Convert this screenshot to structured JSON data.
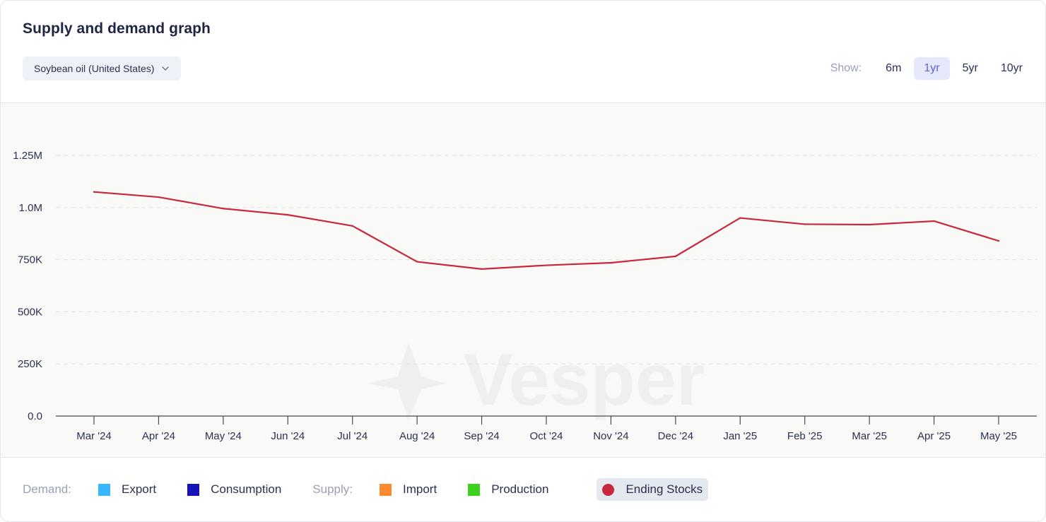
{
  "header": {
    "title": "Supply and demand graph",
    "commodity_select": "Soybean oil (United States)"
  },
  "range": {
    "label": "Show:",
    "options": [
      "6m",
      "1yr",
      "5yr",
      "10yr"
    ],
    "selected": "1yr"
  },
  "watermark": "Vesper",
  "legend": {
    "demand_label": "Demand:",
    "supply_label": "Supply:",
    "items": [
      {
        "name": "Export",
        "color": "#38b6ff",
        "group": "demand"
      },
      {
        "name": "Consumption",
        "color": "#1414b8",
        "group": "demand"
      },
      {
        "name": "Import",
        "color": "#ff8a2e",
        "group": "supply"
      },
      {
        "name": "Production",
        "color": "#3dd01e",
        "group": "supply"
      },
      {
        "name": "Ending Stocks",
        "color": "#c8283c",
        "group": "stock"
      }
    ]
  },
  "chart_data": {
    "type": "line",
    "categories": [
      "Mar '24",
      "Apr '24",
      "May '24",
      "Jun '24",
      "Jul '24",
      "Aug '24",
      "Sep '24",
      "Oct '24",
      "Nov '24",
      "Dec '24",
      "Jan '25",
      "Feb '25",
      "Mar '25",
      "Apr '25",
      "May '25"
    ],
    "series": [
      {
        "name": "Ending Stocks",
        "color": "#c8283c",
        "values": [
          1075000,
          1050000,
          995000,
          965000,
          912000,
          740000,
          705000,
          723000,
          735000,
          766000,
          950000,
          920000,
          918000,
          935000,
          840000
        ]
      }
    ],
    "yticks": [
      0,
      250000,
      500000,
      750000,
      1000000,
      1250000
    ],
    "ytick_labels": [
      "0.0",
      "250K",
      "500K",
      "750K",
      "1.0M",
      "1.25M"
    ],
    "ylim": [
      0,
      1500000
    ],
    "grid": true
  }
}
